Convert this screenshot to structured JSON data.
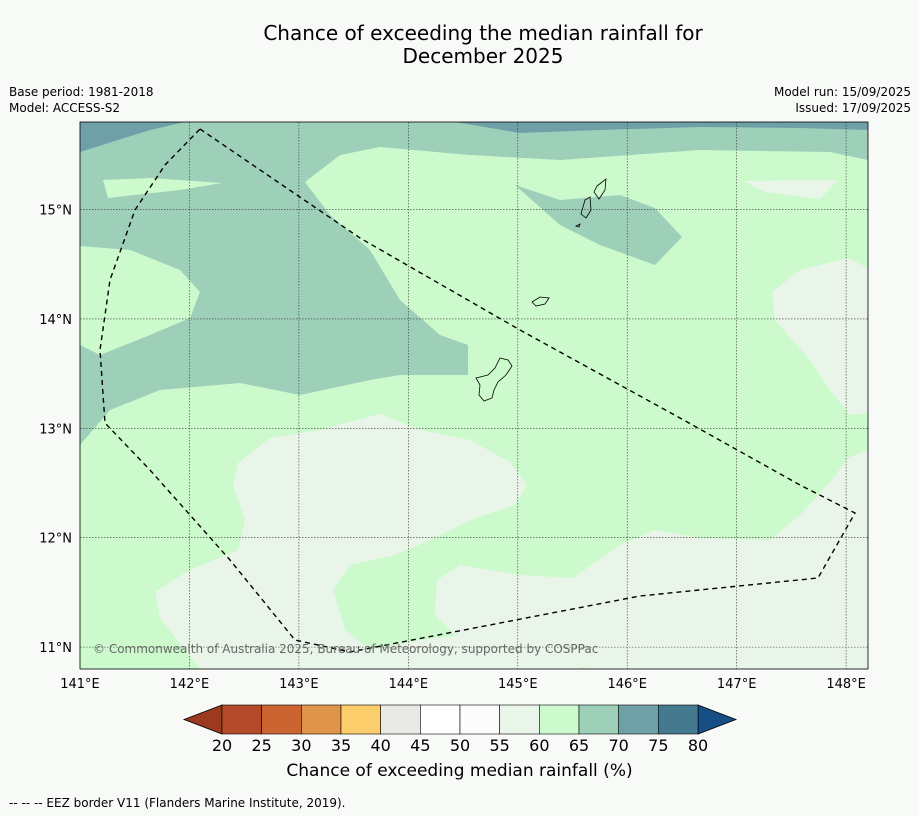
{
  "title_line1": "Chance of exceeding the median rainfall for",
  "title_line2": "December 2025",
  "meta_left": {
    "base_period": "Base period: 1981-2018",
    "model": "Model: ACCESS-S2"
  },
  "meta_right": {
    "model_run": "Model run: 15/09/2025",
    "issued": "Issued: 17/09/2025"
  },
  "copyright": "© Commonwealth of Australia 2025, Bureau of Meteorology, supported by COSPPac",
  "map": {
    "lon_range": [
      141.0,
      148.2
    ],
    "lat_range": [
      10.8,
      15.8
    ],
    "lon_ticks": [
      "141°E",
      "142°E",
      "143°E",
      "144°E",
      "145°E",
      "146°E",
      "147°E",
      "148°E"
    ],
    "lat_ticks": [
      "15°N",
      "14°N",
      "13°N",
      "12°N",
      "11°N"
    ],
    "gridlines": true,
    "islands": [
      "Guam",
      "Rota",
      "Tinian",
      "Saipan"
    ]
  },
  "colorbar": {
    "label": "Chance of exceeding median rainfall (%)",
    "ticks": [
      "20",
      "25",
      "30",
      "35",
      "40",
      "45",
      "50",
      "55",
      "60",
      "65",
      "70",
      "75",
      "80"
    ],
    "colors": [
      "#b44a29",
      "#cc6432",
      "#e09449",
      "#fccd6b",
      "#e9eae6",
      "#ffffff",
      "#fbfcfb",
      "#eaf5ea",
      "#ccfacc",
      "#9ecfb9",
      "#6fa0a8",
      "#44798f"
    ],
    "extend_low": "#9c3a20",
    "extend_high": "#164f85"
  },
  "footnote": "--  --  -- EEZ border V11 (Flanders Marine Institute, 2019)."
}
